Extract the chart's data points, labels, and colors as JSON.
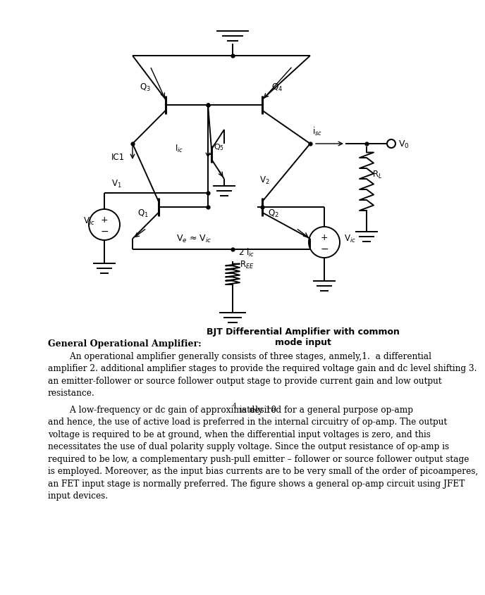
{
  "bg_color": "#ffffff",
  "circuit_caption": "BJT Differential Amplifier with common\nmode input",
  "title_bold": "General Operational Amplifier:",
  "para1_lines": [
    "        An operational amplifier generally consists of three stages, anmely,1.  a differential",
    "amplifier 2. additional amplifier stages to provide the required voltage gain and dc level shifting 3.",
    "an emitter-follower or source follower output stage to provide current gain and low output",
    "resistance."
  ],
  "para2_line1_pre": "        A low-frequency or dc gain of approximately 10",
  "para2_line1_sup": "4",
  "para2_line1_post": " is desired for a general purpose op-amp",
  "para2_lines": [
    "and hence, the use of active load is preferred in the internal circuitry of op-amp. The output",
    "voltage is required to be at ground, when the differential input voltages is zero, and this",
    "necessitates the use of dual polarity supply voltage. Since the output resistance of op-amp is",
    "required to be low, a complementary push-pull emitter – follower or source follower output stage",
    "is employed. Moreover, as the input bias currents are to be very small of the order of picoamperes,",
    "an FET input stage is normally preferred. The figure shows a general op-amp circuit using JFET",
    "input devices."
  ]
}
